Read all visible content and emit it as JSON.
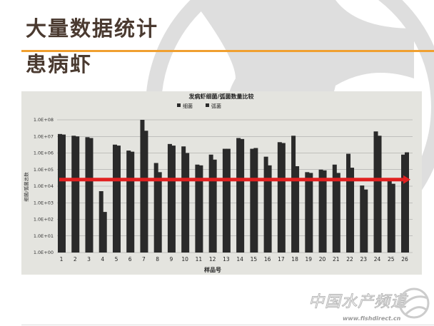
{
  "slide": {
    "title": "大量数据统计",
    "subtitle": "患病虾",
    "accent_color": "#f0a030",
    "title_color": "#4a3a30",
    "watermark": "中国水产频道",
    "watermark_url": "www.fishdirect.cn"
  },
  "chart_data": {
    "type": "bar",
    "title": "发病虾细菌/弧菌数量比较",
    "xlabel": "样品号",
    "ylabel": "细菌/弧菌总数",
    "yscale": "log",
    "ylim": [
      1,
      100000000
    ],
    "yticks": [
      "1.0E+00",
      "1.0E+01",
      "1.0E+02",
      "1.0E+03",
      "1.0E+04",
      "1.0E+05",
      "1.0E+06",
      "1.0E+07",
      "1.0E+08"
    ],
    "grid": true,
    "legend_position": "top-center",
    "categories": [
      "1",
      "2",
      "3",
      "4",
      "5",
      "6",
      "7",
      "8",
      "9",
      "10",
      "11",
      "12",
      "13",
      "14",
      "15",
      "16",
      "17",
      "18",
      "19",
      "20",
      "21",
      "22",
      "23",
      "24",
      "25",
      "26"
    ],
    "series": [
      {
        "name": "细菌",
        "color": "#2a2a2a",
        "values": [
          14000000.0,
          11000000.0,
          9000000.0,
          5000.0,
          3200000.0,
          1400000.0,
          100000000.0,
          250000.0,
          3500000.0,
          2500000.0,
          200000.0,
          800000.0,
          1800000.0,
          8000000.0,
          1800000.0,
          600000.0,
          4500000.0,
          11000000.0,
          70000.0,
          100000.0,
          200000.0,
          900000.0,
          11000.0,
          20000000.0,
          20000.0,
          800000.0
        ]
      },
      {
        "name": "弧菌",
        "color": "#2a2a2a",
        "values": [
          13000000.0,
          10000000.0,
          8000000.0,
          280.0,
          2800000.0,
          1200000.0,
          22000000.0,
          70000.0,
          2800000.0,
          1000000.0,
          180000.0,
          400000.0,
          1800000.0,
          7000000.0,
          2000000.0,
          180000.0,
          4000000.0,
          160000.0,
          63000.0,
          90000.0,
          63000.0,
          130000.0,
          6300.0,
          11000000.0,
          14000.0,
          1100000.0
        ]
      }
    ],
    "annotation": {
      "type": "arrow",
      "color": "#e02020",
      "at_value": 25000.0
    }
  }
}
